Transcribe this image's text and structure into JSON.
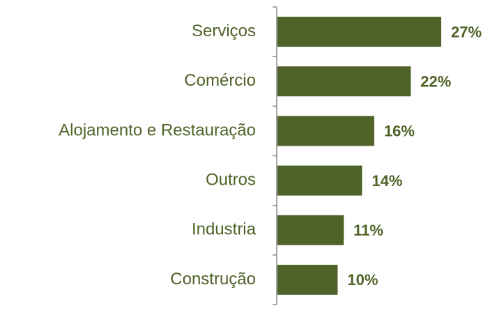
{
  "chart_data": {
    "type": "bar",
    "orientation": "horizontal",
    "categories": [
      "Serviços",
      "Comércio",
      "Alojamento e Restauração",
      "Outros",
      "Industria",
      "Construção"
    ],
    "values": [
      27,
      22,
      16,
      14,
      11,
      10
    ],
    "value_labels": [
      "27%",
      "22%",
      "16%",
      "14%",
      "11%",
      "10%"
    ],
    "color": "#4f6228"
  }
}
